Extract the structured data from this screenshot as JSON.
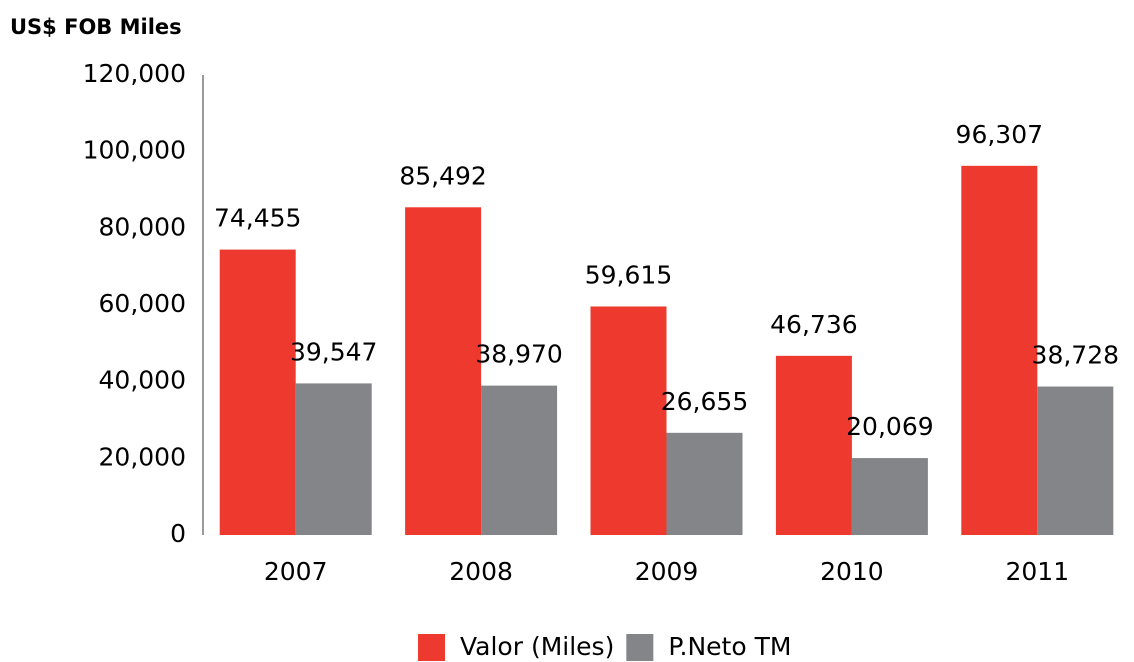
{
  "chart_data": {
    "type": "bar",
    "title": "US$ FOB Miles",
    "categories": [
      "2007",
      "2008",
      "2009",
      "2010",
      "2011"
    ],
    "series": [
      {
        "name": "Valor (Miles)",
        "color": "#ee3a2e",
        "values": [
          74455,
          85492,
          59615,
          46736,
          96307
        ],
        "value_labels": [
          "74,455",
          "85,492",
          "59,615",
          "46,736",
          "96,307"
        ]
      },
      {
        "name": "P.Neto TM",
        "color": "#848589",
        "values": [
          39547,
          38970,
          26655,
          20069,
          38728
        ],
        "value_labels": [
          "39,547",
          "38,970",
          "26,655",
          "20,069",
          "38,728"
        ]
      }
    ],
    "ylim": [
      0,
      120000
    ],
    "yticks": [
      0,
      {
        "value": 20000,
        "label": "20,000"
      },
      {
        "value": 40000,
        "label": "40,000"
      },
      {
        "value": 60000,
        "label": "60,000"
      },
      {
        "value": 80000,
        "label": "80,000"
      },
      {
        "value": 100000,
        "label": "100,000"
      },
      {
        "value": 120000,
        "label": "120,000"
      }
    ],
    "grid": false
  }
}
